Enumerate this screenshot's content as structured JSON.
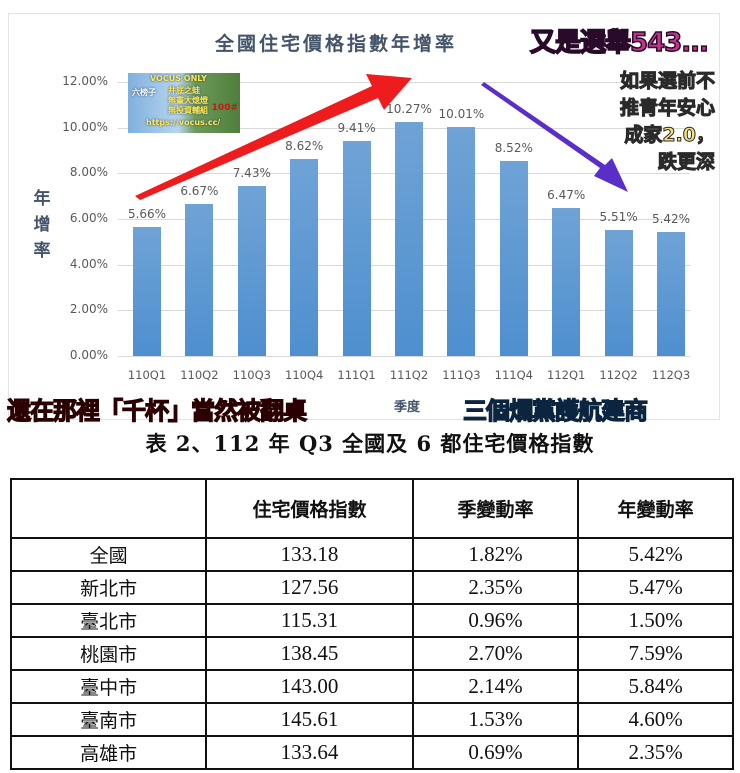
{
  "chart_data": {
    "type": "bar",
    "title": "全國住宅價格指數年增率",
    "xlabel": "季度",
    "ylabel": "年增率",
    "categories": [
      "110Q1",
      "110Q2",
      "110Q3",
      "110Q4",
      "111Q1",
      "111Q2",
      "111Q3",
      "111Q4",
      "112Q1",
      "112Q2",
      "112Q3"
    ],
    "values": [
      5.66,
      6.67,
      7.43,
      8.62,
      9.41,
      10.27,
      10.01,
      8.52,
      6.47,
      5.51,
      5.42
    ],
    "value_labels": [
      "5.66%",
      "6.67%",
      "7.43%",
      "8.62%",
      "9.41%",
      "10.27%",
      "10.01%",
      "8.52%",
      "6.47%",
      "5.51%",
      "5.42%"
    ],
    "yticks": [
      "0.00%",
      "2.00%",
      "4.00%",
      "6.00%",
      "8.00%",
      "10.00%",
      "12.00%"
    ],
    "ylim": [
      0,
      12
    ],
    "grid": true,
    "legend": null,
    "bar_color": "#5b9bd5"
  },
  "chart": {
    "title": "全國住宅價格指數年增率",
    "ylabel_chars": [
      "年",
      "增",
      "率"
    ],
    "xlabel": "季度"
  },
  "watermark": {
    "line1": "VOCUS ONLY",
    "line2": "六榜子",
    "line3": "井底之蛙",
    "line4": "無畫大熄燈",
    "line5": "無投資輔組",
    "line6": "https://vocus.cc/",
    "badge": "100#"
  },
  "overlays": {
    "top_right": "又是選舉543...",
    "yellow_lines": [
      "如果選前不",
      "推青年安心",
      "成家2.0，",
      "跌更深"
    ],
    "bottom_red": "還在那裡「千杯」當然被翻桌",
    "bottom_blue": "三個爛黨護航建商",
    "red_arrow_color": "#ee1c1c",
    "purple_arrow_color": "#5a2fc8"
  },
  "table": {
    "title": "表 2、112 年 Q3 全國及 6 都住宅價格指數",
    "headers": [
      "",
      "住宅價格指數",
      "季變動率",
      "年變動率"
    ],
    "rows": [
      {
        "name": "全國",
        "index": "133.18",
        "qoq": "1.82%",
        "yoy": "5.42%"
      },
      {
        "name": "新北市",
        "index": "127.56",
        "qoq": "2.35%",
        "yoy": "5.47%"
      },
      {
        "name": "臺北市",
        "index": "115.31",
        "qoq": "0.96%",
        "yoy": "1.50%"
      },
      {
        "name": "桃園市",
        "index": "138.45",
        "qoq": "2.70%",
        "yoy": "7.59%"
      },
      {
        "name": "臺中市",
        "index": "143.00",
        "qoq": "2.14%",
        "yoy": "5.84%"
      },
      {
        "name": "臺南市",
        "index": "145.61",
        "qoq": "1.53%",
        "yoy": "4.60%"
      },
      {
        "name": "高雄市",
        "index": "133.64",
        "qoq": "0.69%",
        "yoy": "2.35%"
      }
    ]
  }
}
